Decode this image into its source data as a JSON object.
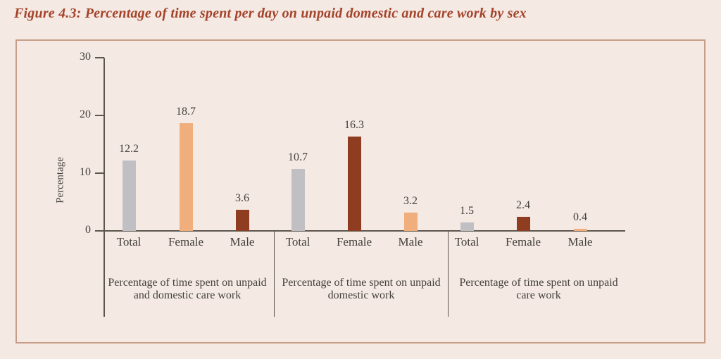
{
  "figure": {
    "title": "Figure 4.3: Percentage of time spent per day on unpaid domestic and care work by sex"
  },
  "colors": {
    "page_background": "#f4e9e3",
    "panel_border": "#c89e8a",
    "title_text": "#a4432a",
    "body_text": "#44403c",
    "axis_line": "#5c564f",
    "bar_total_gray": "#c0bfc3",
    "bar_light_orange": "#f0ae7d",
    "bar_dark_brick": "#8e3d20"
  },
  "chart_data": {
    "type": "bar",
    "title": "Figure 4.3: Percentage of time spent per day on unpaid domestic and care work by sex",
    "xlabel": "",
    "ylabel": "Percentage",
    "ylim": [
      0,
      30
    ],
    "yticks": [
      0,
      10,
      20,
      30
    ],
    "grid": false,
    "legend": "none",
    "groups": [
      {
        "label_lines": [
          "Percentage of time spent on unpaid",
          "and domestic care work"
        ],
        "bars": [
          {
            "category": "Total",
            "value": 12.2,
            "value_label": "12.2",
            "color": "#c0bfc3"
          },
          {
            "category": "Female",
            "value": 18.7,
            "value_label": "18.7",
            "color": "#f0ae7d"
          },
          {
            "category": "Male",
            "value": 3.6,
            "value_label": "3.6",
            "color": "#8e3d20"
          }
        ]
      },
      {
        "label_lines": [
          "Percentage of time spent on unpaid",
          "domestic work"
        ],
        "bars": [
          {
            "category": "Total",
            "value": 10.7,
            "value_label": "10.7",
            "color": "#c0bfc3"
          },
          {
            "category": "Female",
            "value": 16.3,
            "value_label": "16.3",
            "color": "#8e3d20"
          },
          {
            "category": "Male",
            "value": 3.2,
            "value_label": "3.2",
            "color": "#f0ae7d"
          }
        ]
      },
      {
        "label_lines": [
          "Percentage of time spent on unpaid",
          "care work"
        ],
        "bars": [
          {
            "category": "Total",
            "value": 1.5,
            "value_label": "1.5",
            "color": "#c0bfc3"
          },
          {
            "category": "Female",
            "value": 2.4,
            "value_label": "2.4",
            "color": "#8e3d20"
          },
          {
            "category": "Male",
            "value": 0.4,
            "value_label": "0.4",
            "color": "#f0ae7d"
          }
        ]
      }
    ]
  }
}
